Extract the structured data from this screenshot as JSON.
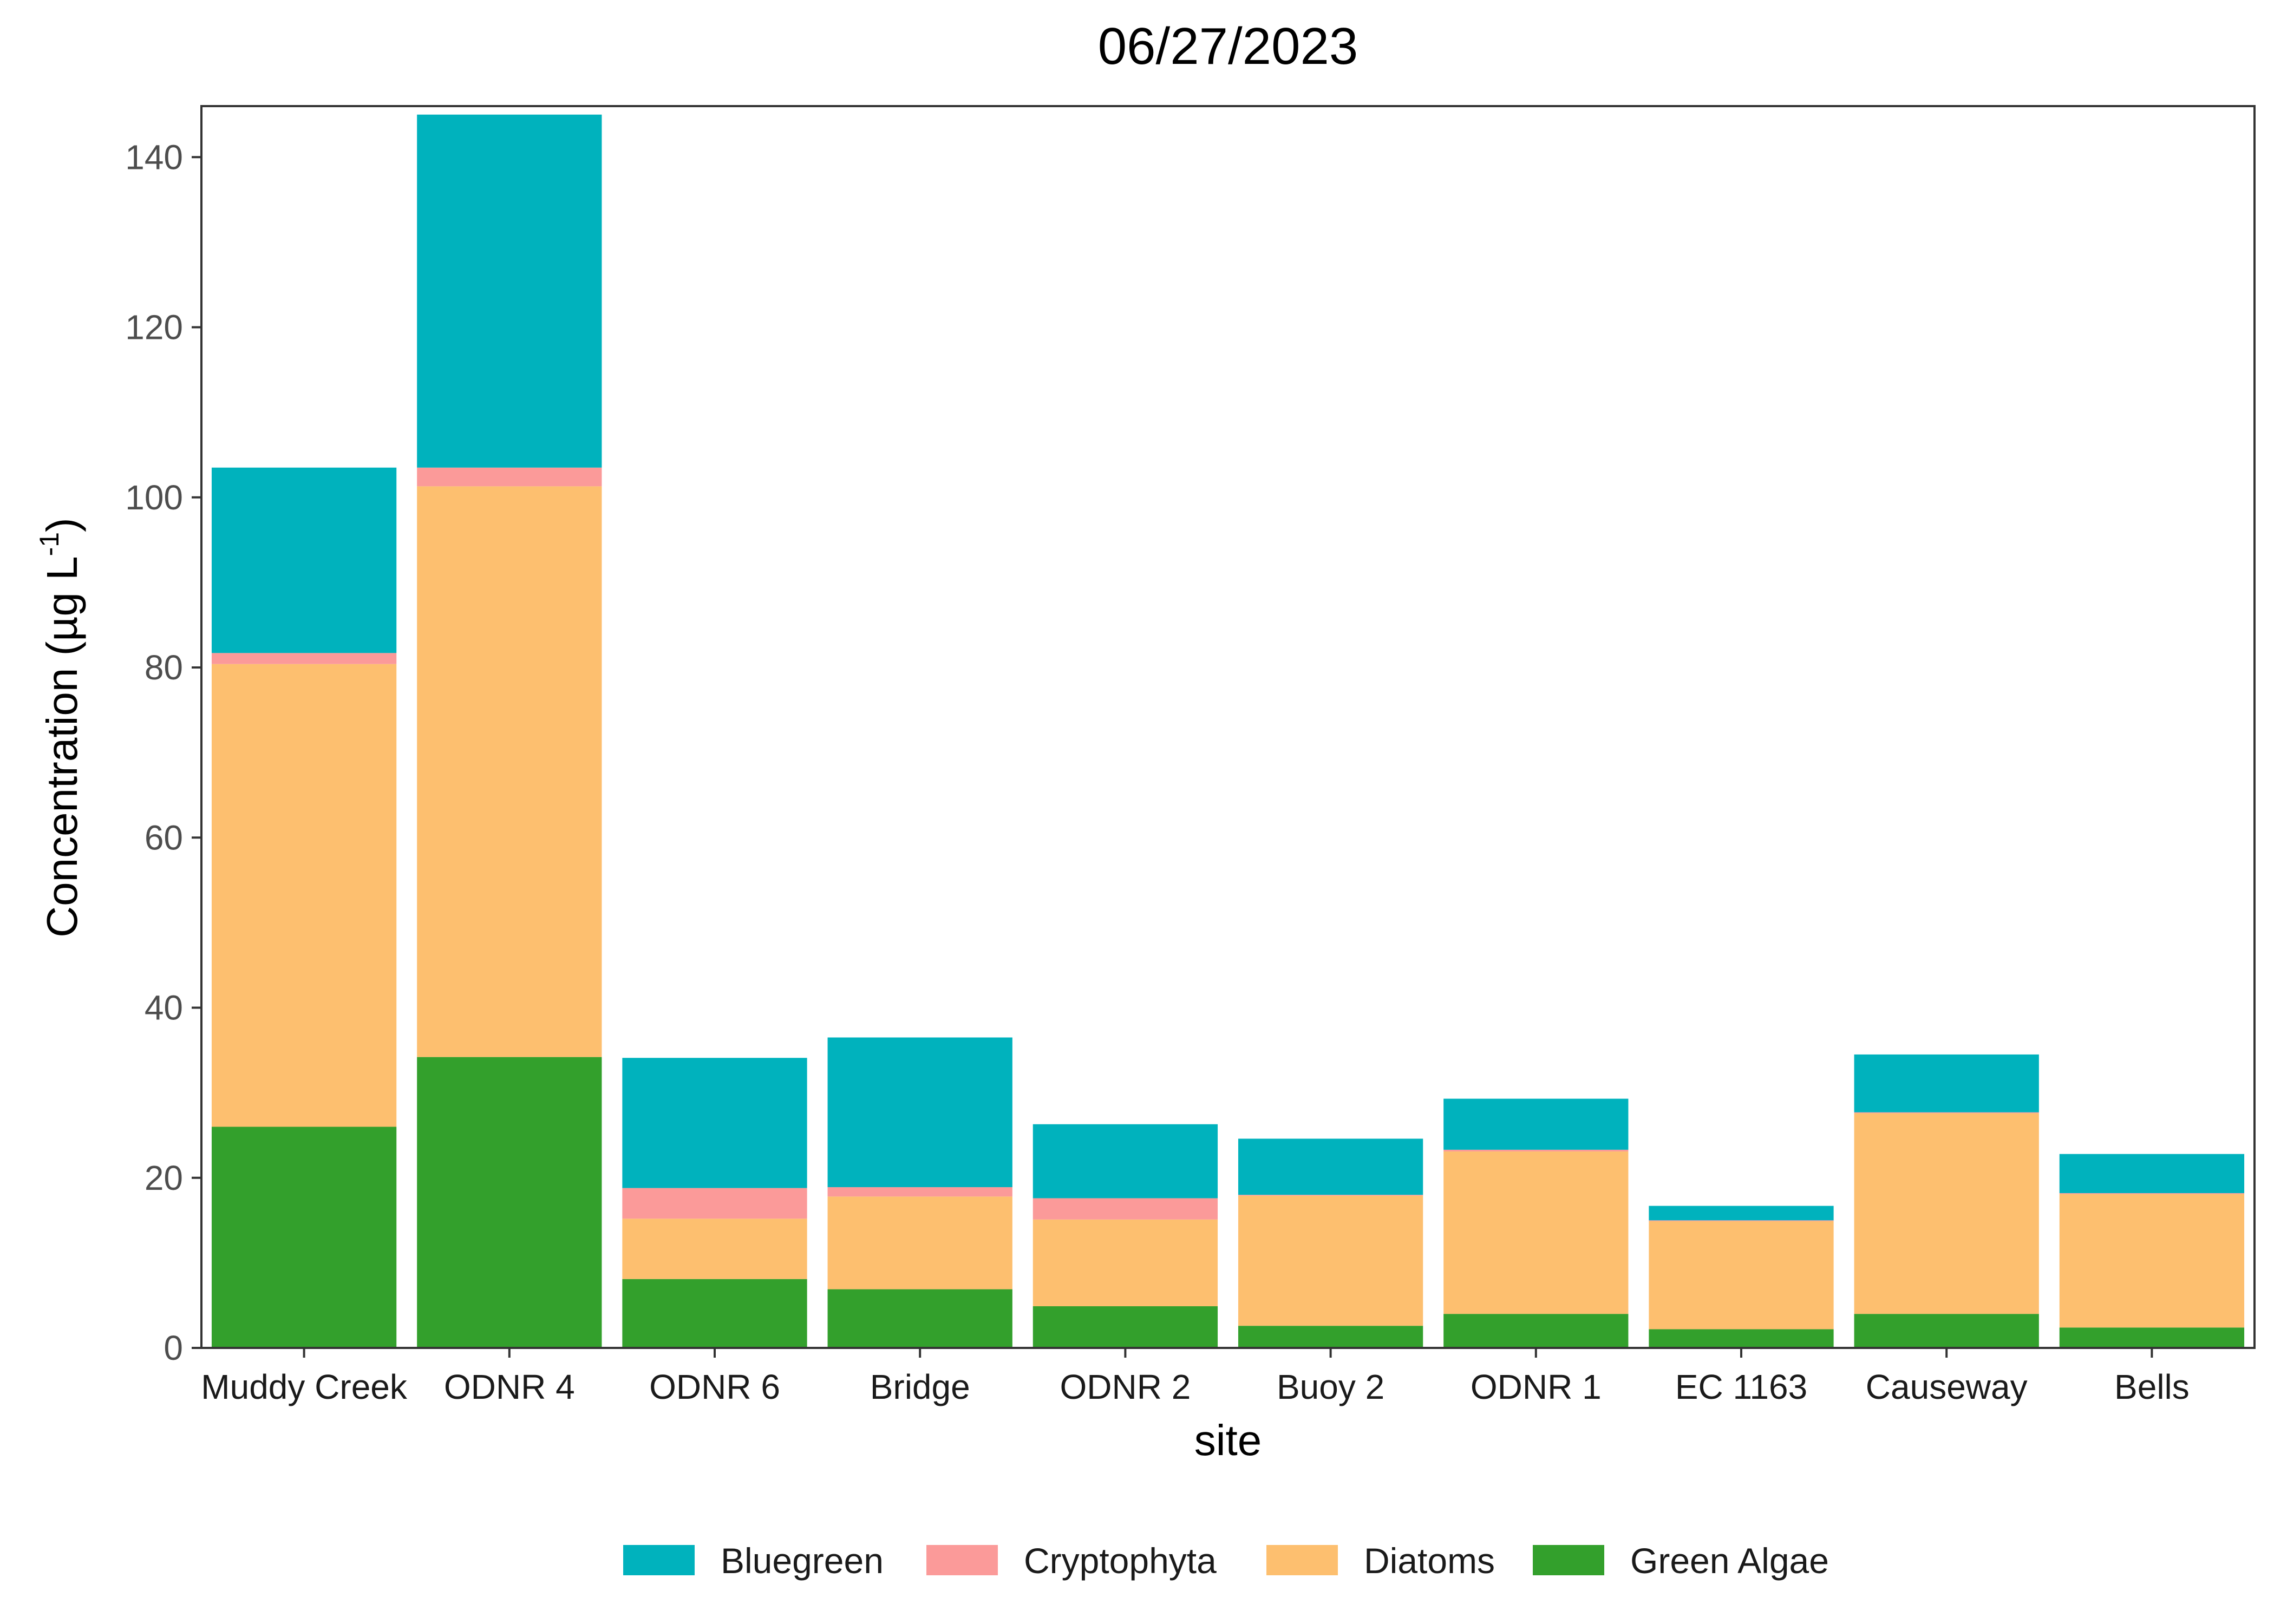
{
  "chart_data": {
    "type": "bar",
    "stacked": true,
    "title": "06/27/2023",
    "xlabel": "site",
    "ylabel": {
      "main": "Concentration (µg L",
      "superscript": "-1",
      "close": ")"
    },
    "ylim": [
      0,
      146
    ],
    "yticks": [
      0,
      20,
      40,
      60,
      80,
      100,
      120,
      140
    ],
    "grid": false,
    "legend_position": "bottom",
    "categories": [
      "Muddy Creek",
      "ODNR 4",
      "ODNR 6",
      "Bridge",
      "ODNR 2",
      "Buoy 2",
      "ODNR 1",
      "EC 1163",
      "Causeway",
      "Bells"
    ],
    "series": [
      {
        "name": "Green Algae",
        "color": "#33a02c",
        "values": [
          26,
          34.2,
          8.1,
          6.9,
          4.9,
          2.6,
          4.0,
          2.2,
          4.0,
          2.4
        ]
      },
      {
        "name": "Diatoms",
        "color": "#fdbf6f",
        "values": [
          54.4,
          67.1,
          7.1,
          10.9,
          10.2,
          15.3,
          19.1,
          12.7,
          23.6,
          15.7
        ]
      },
      {
        "name": "Cryptophyta",
        "color": "#fb9a99",
        "values": [
          1.3,
          2.2,
          3.6,
          1.1,
          2.5,
          0.1,
          0.2,
          0.1,
          0.1,
          0.1
        ]
      },
      {
        "name": "Bluegreen",
        "color": "#00b2bd",
        "values": [
          21.8,
          41.5,
          15.3,
          17.6,
          8.7,
          6.6,
          6.0,
          1.7,
          6.8,
          4.6
        ]
      }
    ],
    "legend_order": [
      "Bluegreen",
      "Cryptophyta",
      "Diatoms",
      "Green Algae"
    ]
  }
}
